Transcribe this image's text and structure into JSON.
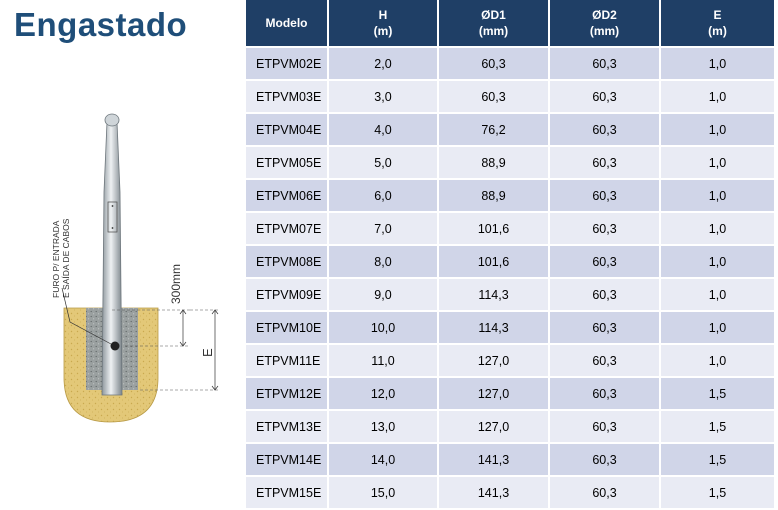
{
  "title": "Engastado",
  "figure": {
    "label_hole_line1": "FURO P/ ENTRADA",
    "label_hole_line2": "E SAÍDA DE CABOS",
    "label_300": "300mm",
    "label_e": "E"
  },
  "table": {
    "headers": [
      {
        "line1": "Modelo",
        "line2": ""
      },
      {
        "line1": "H",
        "line2": "(m)"
      },
      {
        "line1": "ØD1",
        "line2": "(mm)"
      },
      {
        "line1": "ØD2",
        "line2": "(mm)"
      },
      {
        "line1": "E",
        "line2": "(m)"
      }
    ],
    "rows": [
      [
        "ETPVM02E",
        "2,0",
        "60,3",
        "60,3",
        "1,0"
      ],
      [
        "ETPVM03E",
        "3,0",
        "60,3",
        "60,3",
        "1,0"
      ],
      [
        "ETPVM04E",
        "4,0",
        "76,2",
        "60,3",
        "1,0"
      ],
      [
        "ETPVM05E",
        "5,0",
        "88,9",
        "60,3",
        "1,0"
      ],
      [
        "ETPVM06E",
        "6,0",
        "88,9",
        "60,3",
        "1,0"
      ],
      [
        "ETPVM07E",
        "7,0",
        "101,6",
        "60,3",
        "1,0"
      ],
      [
        "ETPVM08E",
        "8,0",
        "101,6",
        "60,3",
        "1,0"
      ],
      [
        "ETPVM09E",
        "9,0",
        "114,3",
        "60,3",
        "1,0"
      ],
      [
        "ETPVM10E",
        "10,0",
        "114,3",
        "60,3",
        "1,0"
      ],
      [
        "ETPVM11E",
        "11,0",
        "127,0",
        "60,3",
        "1,0"
      ],
      [
        "ETPVM12E",
        "12,0",
        "127,0",
        "60,3",
        "1,5"
      ],
      [
        "ETPVM13E",
        "13,0",
        "127,0",
        "60,3",
        "1,5"
      ],
      [
        "ETPVM14E",
        "14,0",
        "141,3",
        "60,3",
        "1,5"
      ],
      [
        "ETPVM15E",
        "15,0",
        "141,3",
        "60,3",
        "1,5"
      ]
    ]
  }
}
